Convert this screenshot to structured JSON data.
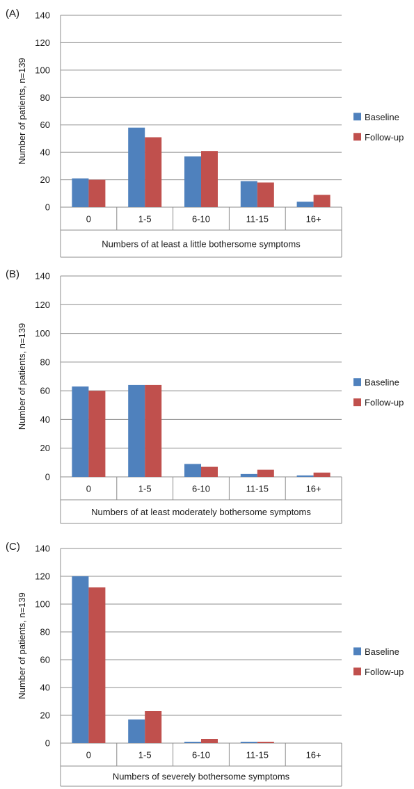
{
  "legend": {
    "baseline_color": "#4f81bd",
    "followup_color": "#c0504d"
  },
  "chart_data": [
    {
      "type": "bar",
      "panel_label": "(A)",
      "categories": [
        "0",
        "1-5",
        "6-10",
        "11-15",
        "16+"
      ],
      "series": [
        {
          "name": "Baseline",
          "values": [
            21,
            58,
            37,
            19,
            4
          ]
        },
        {
          "name": "Follow-up",
          "values": [
            20,
            51,
            41,
            18,
            9
          ]
        }
      ],
      "xlabel": "Numbers of at least a little bothersome symptoms",
      "ylabel": "Number of patients, n=139",
      "ylim": [
        0,
        140
      ],
      "yticks": [
        "0",
        "20",
        "40",
        "60",
        "80",
        "100",
        "120",
        "140"
      ],
      "grid": true,
      "legend_position": "right"
    },
    {
      "type": "bar",
      "panel_label": "(B)",
      "categories": [
        "0",
        "1-5",
        "6-10",
        "11-15",
        "16+"
      ],
      "series": [
        {
          "name": "Baseline",
          "values": [
            63,
            64,
            9,
            2,
            1
          ]
        },
        {
          "name": "Follow-up",
          "values": [
            60,
            64,
            7,
            5,
            3
          ]
        }
      ],
      "xlabel": "Numbers of at least moderately bothersome symptoms",
      "ylabel": "Number of patients, n=139",
      "ylim": [
        0,
        140
      ],
      "yticks": [
        "0",
        "20",
        "40",
        "60",
        "80",
        "100",
        "120",
        "140"
      ],
      "grid": true,
      "legend_position": "right"
    },
    {
      "type": "bar",
      "panel_label": "(C)",
      "categories": [
        "0",
        "1-5",
        "6-10",
        "11-15",
        "16+"
      ],
      "series": [
        {
          "name": "Baseline",
          "values": [
            120,
            17,
            1,
            1,
            0
          ]
        },
        {
          "name": "Follow-up",
          "values": [
            112,
            23,
            3,
            1,
            0
          ]
        }
      ],
      "xlabel": "Numbers of severely bothersome symptoms",
      "ylabel": "Number of patients, n=139",
      "ylim": [
        0,
        140
      ],
      "yticks": [
        "0",
        "20",
        "40",
        "60",
        "80",
        "100",
        "120",
        "140"
      ],
      "grid": true,
      "legend_position": "right"
    }
  ]
}
